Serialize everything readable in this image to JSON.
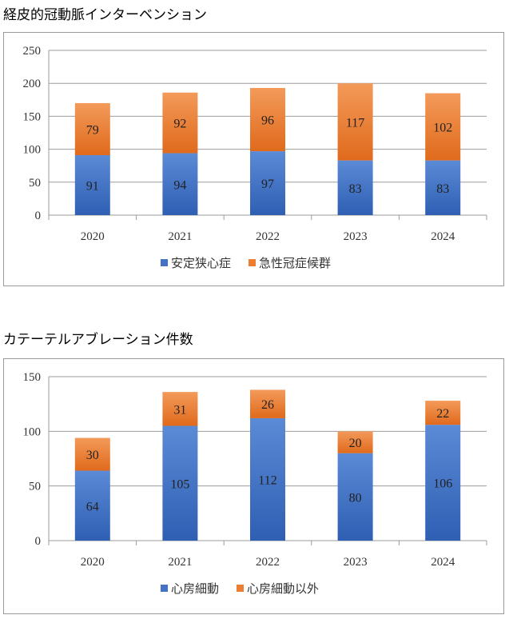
{
  "chart_data": [
    {
      "type": "bar",
      "stacked": true,
      "title": "経皮的冠動脈インターベンション",
      "categories": [
        "2020",
        "2021",
        "2022",
        "2023",
        "2024"
      ],
      "series": [
        {
          "name": "安定狭心症",
          "values": [
            91,
            94,
            97,
            83,
            83
          ],
          "color": "#4472c4"
        },
        {
          "name": "急性冠症候群",
          "values": [
            79,
            92,
            96,
            117,
            102
          ],
          "color": "#ed7d31"
        }
      ],
      "ylim": [
        0,
        250
      ],
      "yticks": [
        0,
        50,
        100,
        150,
        200,
        250
      ],
      "grid": true,
      "legend": "bottom"
    },
    {
      "type": "bar",
      "stacked": true,
      "title": "カテーテルアブレーション件数",
      "categories": [
        "2020",
        "2021",
        "2022",
        "2023",
        "2024"
      ],
      "series": [
        {
          "name": "心房細動",
          "values": [
            64,
            105,
            112,
            80,
            106
          ],
          "color": "#4472c4"
        },
        {
          "name": "心房細動以外",
          "values": [
            30,
            31,
            26,
            20,
            22
          ],
          "color": "#ed7d31"
        }
      ],
      "ylim": [
        0,
        150
      ],
      "yticks": [
        0,
        50,
        100,
        150
      ],
      "grid": true,
      "legend": "bottom"
    }
  ]
}
